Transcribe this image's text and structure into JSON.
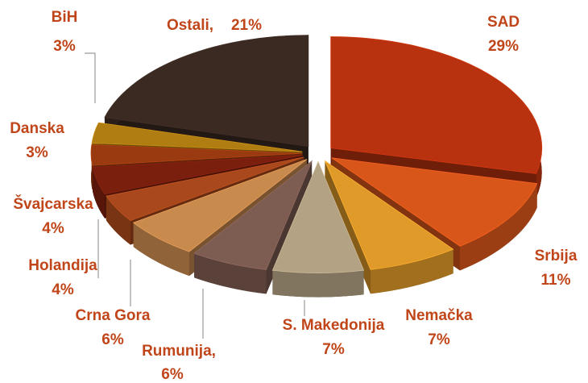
{
  "chart_data": {
    "type": "pie",
    "categories": [
      "SAD",
      "Srbija",
      "Nemačka",
      "S. Makedonija",
      "Rumunija,",
      "Crna Gora",
      "Holandija",
      "Švajcarska",
      "Danska",
      "BiH",
      "Ostali,"
    ],
    "values": [
      29,
      11,
      7,
      7,
      6,
      6,
      4,
      4,
      3,
      3,
      21
    ],
    "value_labels": [
      "29%",
      "11%",
      "7%",
      "7%",
      "6%",
      "6%",
      "4%",
      "4%",
      "3%",
      "3%",
      "21%"
    ],
    "colors": [
      "#b8320f",
      "#d9561a",
      "#e09a2a",
      "#b3a384",
      "#7d5c52",
      "#c98a4e",
      "#a8481c",
      "#7a1e0e",
      "#9a3a10",
      "#b07d12",
      "#3a2a22"
    ]
  }
}
